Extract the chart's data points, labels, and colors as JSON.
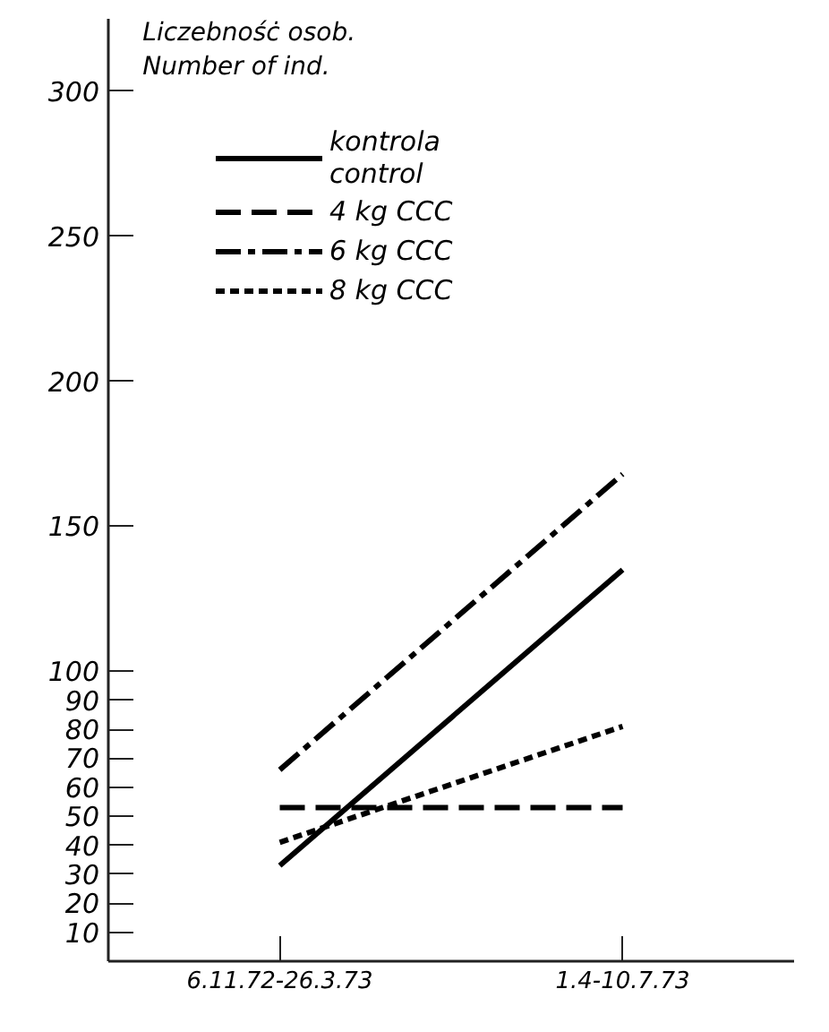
{
  "chart_data": {
    "type": "line",
    "ylabel": "Liczebnośċ osob.\nNumber of ind.",
    "categories": [
      "6.11.72-26.3.73",
      "1.4-10.7.73"
    ],
    "series": [
      {
        "name": "kontrola\ncontrol",
        "color": "#000000",
        "line_style": "solid",
        "values": [
          33,
          135
        ]
      },
      {
        "name": "4 kg CCC",
        "color": "#000000",
        "line_style": "dashed",
        "values": [
          53,
          53
        ]
      },
      {
        "name": "6 kg CCC",
        "color": "#000000",
        "line_style": "dashdot",
        "values": [
          66,
          168
        ]
      },
      {
        "name": "8 kg CCC",
        "color": "#000000",
        "line_style": "dotted",
        "values": [
          41,
          81
        ]
      }
    ],
    "ylim": [
      0,
      325
    ],
    "yticks": [
      10,
      20,
      30,
      40,
      50,
      60,
      70,
      80,
      90,
      100,
      150,
      200,
      250,
      300
    ],
    "grid": false,
    "legend": "top left",
    "marker": "none"
  }
}
